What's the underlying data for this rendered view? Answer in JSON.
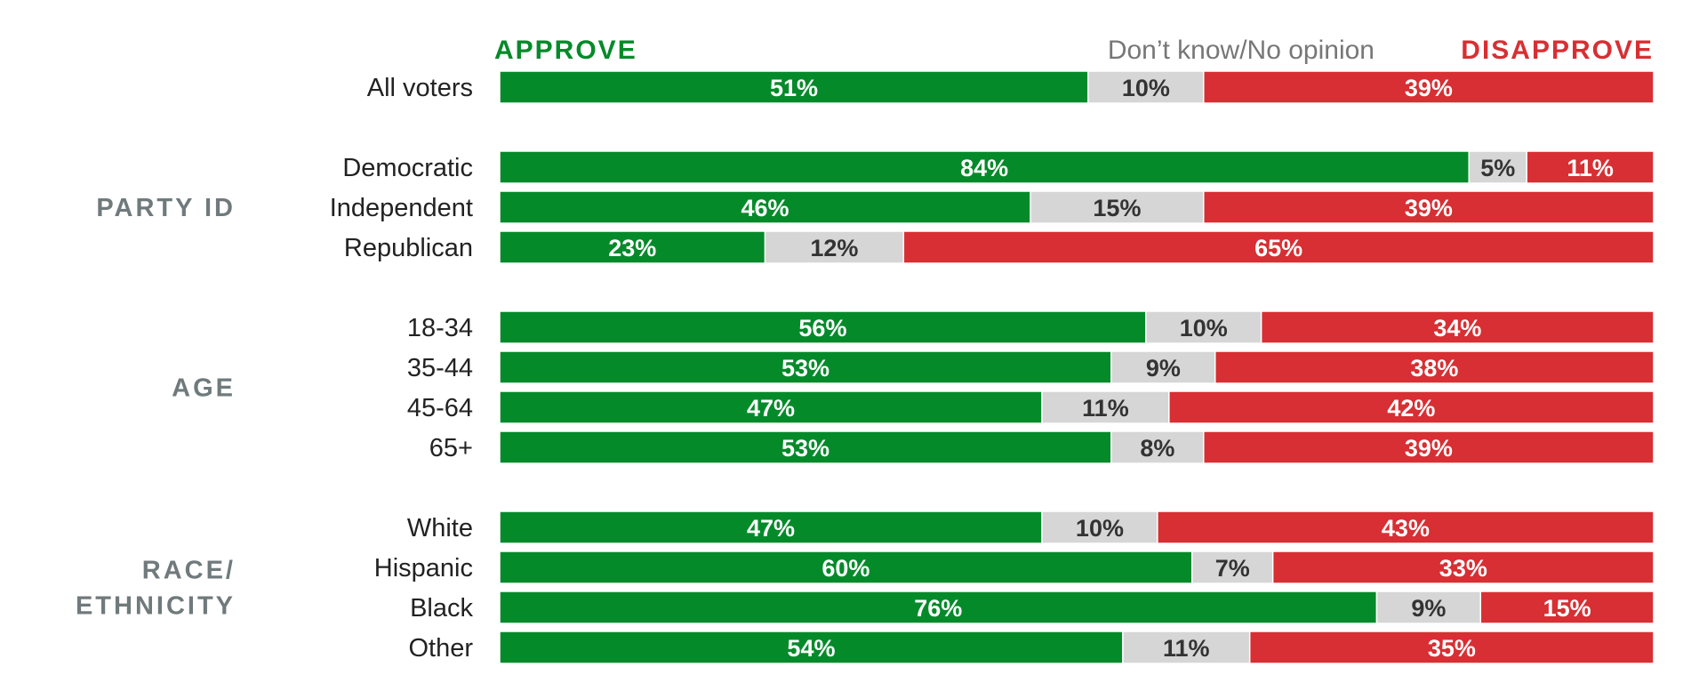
{
  "chart_data": {
    "type": "bar",
    "orientation": "horizontal",
    "stacked": true,
    "xlim": [
      0,
      100
    ],
    "legend": [
      {
        "key": "approve",
        "label": "APPROVE",
        "color": "#058a2a"
      },
      {
        "key": "dk",
        "label": "Don’t know/No opinion",
        "color": "#d6d6d6"
      },
      {
        "key": "disapprove",
        "label": "DISAPPROVE",
        "color": "#d72f33"
      }
    ],
    "groups": [
      {
        "name": "",
        "rows": [
          {
            "label": "All voters",
            "values": [
              51,
              10,
              39
            ],
            "labels": [
              "51%",
              "10%",
              "39%"
            ]
          }
        ]
      },
      {
        "name": "PARTY ID",
        "rows": [
          {
            "label": "Democratic",
            "values": [
              84,
              5,
              11
            ],
            "labels": [
              "84%",
              "5%",
              "11%"
            ]
          },
          {
            "label": "Independent",
            "values": [
              46,
              15,
              39
            ],
            "labels": [
              "46%",
              "15%",
              "39%"
            ]
          },
          {
            "label": "Republican",
            "values": [
              23,
              12,
              65
            ],
            "labels": [
              "23%",
              "12%",
              "65%"
            ]
          }
        ]
      },
      {
        "name": "AGE",
        "rows": [
          {
            "label": "18-34",
            "values": [
              56,
              10,
              34
            ],
            "labels": [
              "56%",
              "10%",
              "34%"
            ]
          },
          {
            "label": "35-44",
            "values": [
              53,
              9,
              38
            ],
            "labels": [
              "53%",
              "9%",
              "38%"
            ]
          },
          {
            "label": "45-64",
            "values": [
              47,
              11,
              42
            ],
            "labels": [
              "47%",
              "11%",
              "42%"
            ]
          },
          {
            "label": "65+",
            "values": [
              53,
              8,
              39
            ],
            "labels": [
              "53%",
              "8%",
              "39%"
            ]
          }
        ]
      },
      {
        "name": "RACE/\nETHNICITY",
        "rows": [
          {
            "label": "White",
            "values": [
              47,
              10,
              43
            ],
            "labels": [
              "47%",
              "10%",
              "43%"
            ]
          },
          {
            "label": "Hispanic",
            "values": [
              60,
              7,
              33
            ],
            "labels": [
              "60%",
              "7%",
              "33%"
            ]
          },
          {
            "label": "Black",
            "values": [
              76,
              9,
              15
            ],
            "labels": [
              "76%",
              "9%",
              "15%"
            ]
          },
          {
            "label": "Other",
            "values": [
              54,
              11,
              35
            ],
            "labels": [
              "54%",
              "11%",
              "35%"
            ]
          }
        ]
      }
    ]
  }
}
